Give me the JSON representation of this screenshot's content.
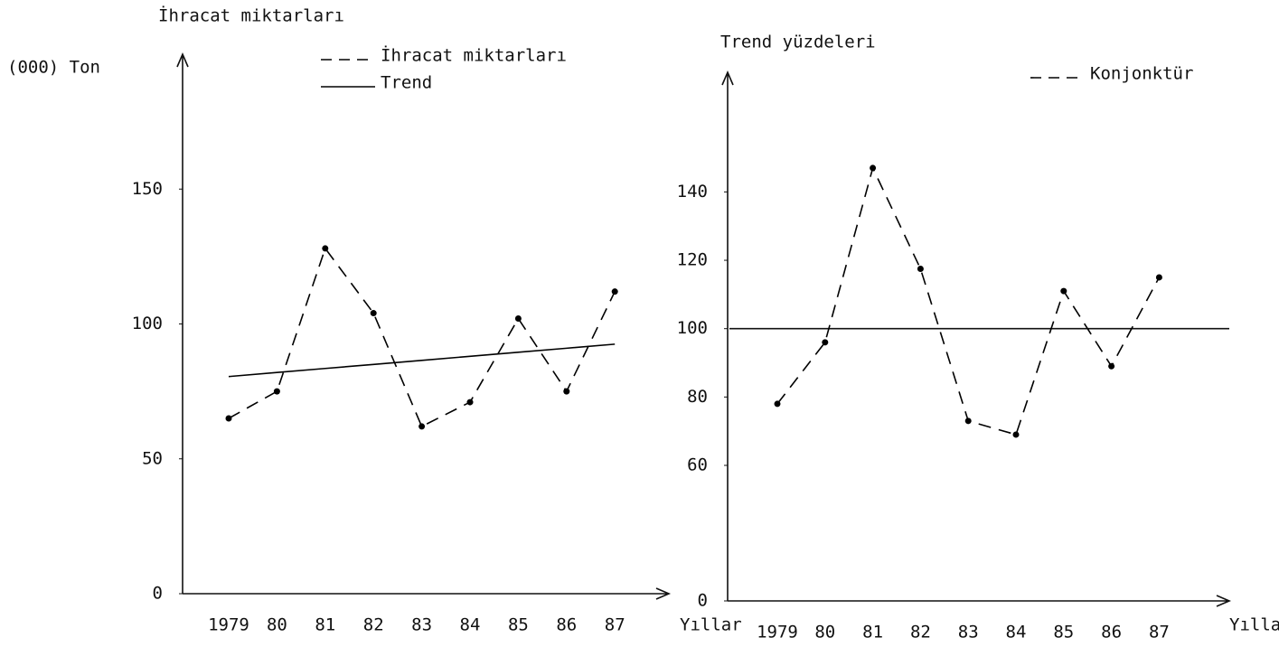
{
  "chart_data": [
    {
      "type": "line",
      "title": "İhracat miktarları",
      "ylabel": "(000) Ton",
      "xlabel": "Yıllar",
      "categories": [
        "1979",
        "80",
        "81",
        "82",
        "83",
        "84",
        "85",
        "86",
        "87"
      ],
      "series": [
        {
          "name": "İhracat miktarları",
          "color": "#000000",
          "dashed": true,
          "markers": true,
          "values": [
            65,
            75,
            128,
            104,
            62,
            71,
            102,
            75,
            112
          ]
        },
        {
          "name": "Trend",
          "color": "#000000",
          "dashed": false,
          "markers": false,
          "values": [
            80.5,
            82,
            83.5,
            85,
            86.5,
            88,
            89.5,
            91,
            92.5
          ]
        }
      ],
      "ylim": [
        0,
        200
      ],
      "yticks": [
        0,
        50,
        100,
        150
      ]
    },
    {
      "type": "line",
      "ylabel": "Trend yüzdeleri",
      "xlabel": "Yıllar",
      "categories": [
        "1979",
        "80",
        "81",
        "82",
        "83",
        "84",
        "85",
        "86",
        "87"
      ],
      "series": [
        {
          "name": "Konjonktür",
          "color": "#000000",
          "dashed": true,
          "markers": true,
          "values": [
            78,
            96,
            147,
            117.5,
            73,
            69,
            111,
            89,
            115
          ]
        }
      ],
      "reference_line": 100,
      "axis_break": [
        0,
        60
      ],
      "ylim": [
        0,
        175
      ],
      "yticks": [
        0,
        60,
        80,
        100,
        120,
        140
      ]
    }
  ]
}
